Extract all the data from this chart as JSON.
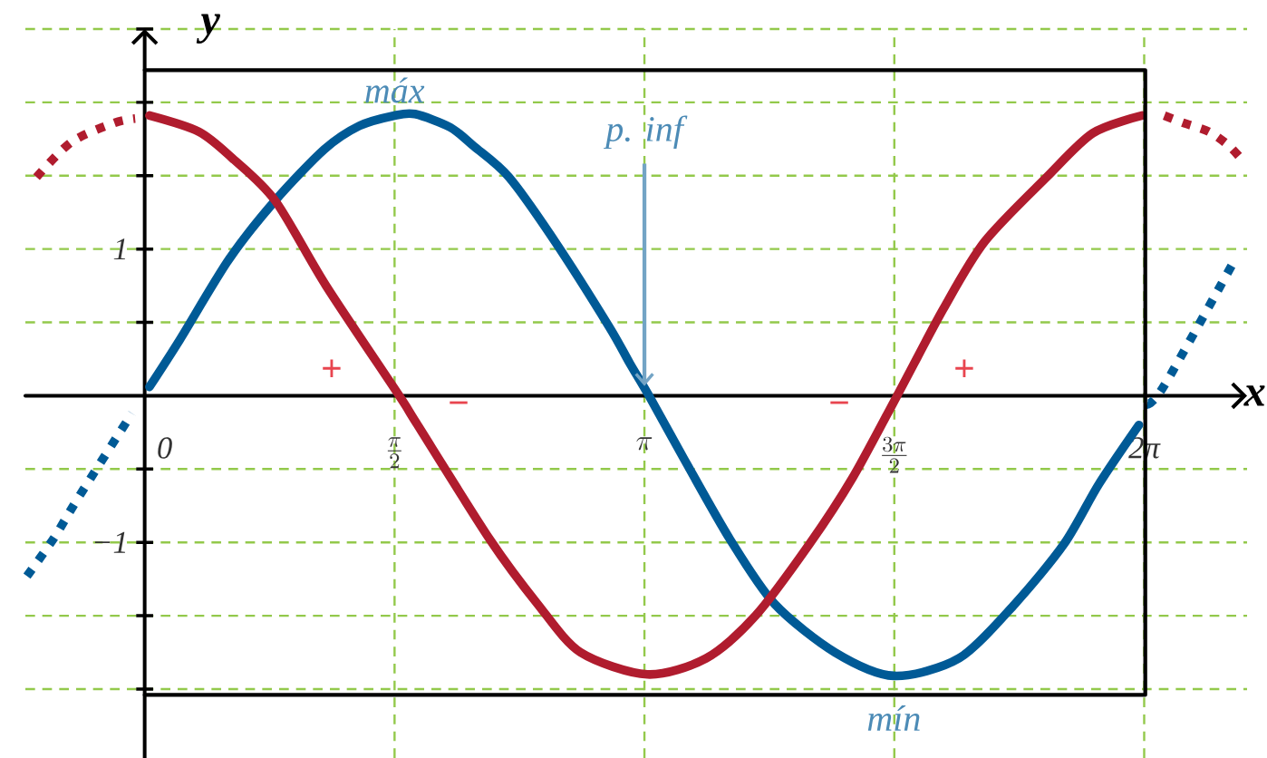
{
  "chart_data": {
    "type": "line",
    "xlabel": "x",
    "ylabel": "y",
    "xlim": [
      -0.75,
      6.93
    ],
    "ylim": [
      -2.47,
      2.5
    ],
    "xticks": [
      0,
      {
        "value": 1.570796,
        "label": "\\frac{\\pi}{2}"
      },
      {
        "value": 3.141593,
        "label": "\\pi"
      },
      {
        "value": 4.712389,
        "label": "\\frac{3\\pi}{2}"
      },
      {
        "value": 6.283185,
        "label": "2π"
      }
    ],
    "yticks": [
      {
        "value": -2,
        "label": null
      },
      {
        "value": -1.5,
        "label": null
      },
      {
        "value": -1,
        "label": "−1"
      },
      {
        "value": -0.5,
        "label": null
      },
      {
        "value": 0.5,
        "label": null
      },
      1,
      {
        "value": 1.5,
        "label": null
      },
      {
        "value": 2,
        "label": null
      },
      {
        "value": 2.5,
        "label": null
      }
    ],
    "grid": true,
    "marker": "none",
    "series": [
      {
        "color": "#005a96",
        "line_style": "solid",
        "x": [
          0.03,
          0.22,
          0.53,
          0.82,
          1.13,
          1.35,
          1.57,
          1.7,
          1.92,
          2.07,
          2.29,
          2.58,
          2.92,
          3.05,
          3.17,
          3.39,
          3.68,
          3.96,
          4.34,
          4.71,
          5.12,
          5.47,
          5.78,
          6.0,
          6.25
        ],
        "values": [
          0.06,
          0.38,
          0.93,
          1.33,
          1.68,
          1.84,
          1.91,
          1.92,
          1.83,
          1.7,
          1.49,
          1.05,
          0.47,
          0.22,
          0,
          -0.43,
          -0.98,
          -1.42,
          -1.75,
          -1.91,
          -1.79,
          -1.42,
          -1.01,
          -0.6,
          -0.2
        ]
      },
      {
        "color": "#b01c2e",
        "line_style": "solid",
        "x": [
          0.03,
          0.34,
          0.55,
          0.82,
          1.14,
          1.6,
          1.71,
          2.17,
          2.47,
          2.74,
          3.16,
          3.53,
          3.84,
          4.18,
          4.45,
          4.73,
          5.02,
          5.28,
          5.67,
          5.96,
          6.27
        ],
        "values": [
          1.91,
          1.8,
          1.62,
          1.33,
          0.75,
          0,
          -0.19,
          -0.98,
          -1.42,
          -1.75,
          -1.9,
          -1.79,
          -1.5,
          -1.01,
          -0.56,
          0,
          0.59,
          1.05,
          1.49,
          1.79,
          1.91
        ]
      },
      {
        "color": "#005a96",
        "line_style": "dotted",
        "x": [
          -0.74,
          -0.57,
          -0.42,
          -0.08
        ],
        "values": [
          -1.23,
          -0.97,
          -0.7,
          -0.12
        ]
      },
      {
        "color": "#005a96",
        "line_style": "dotted",
        "x": [
          6.3,
          6.41,
          6.86
        ],
        "values": [
          -0.06,
          0.07,
          0.94
        ]
      },
      {
        "color": "#b01c2e",
        "line_style": "dotted",
        "x": [
          -0.68,
          -0.46,
          -0.19,
          -0.06
        ],
        "values": [
          1.49,
          1.73,
          1.86,
          1.89
        ]
      },
      {
        "color": "#b01c2e",
        "line_style": "dotted",
        "x": [
          6.41,
          6.53,
          6.69,
          6.82,
          6.92
        ],
        "values": [
          1.91,
          1.86,
          1.8,
          1.7,
          1.58
        ]
      },
      {
        "color": "#000000",
        "line_style": "solid",
        "x": [
          0,
          6.29,
          6.29,
          0
        ],
        "values": [
          2.22,
          2.22,
          -2.04,
          -2.04
        ]
      }
    ],
    "annotations": [
      {
        "text": "máx",
        "x": 1.57,
        "y": 1.91
      },
      {
        "text": "p. inf",
        "x": 3.1416,
        "y": 0
      },
      {
        "text": "mín",
        "x": 4.71,
        "y": -1.91
      },
      "+",
      "−",
      "−",
      "+"
    ]
  }
}
